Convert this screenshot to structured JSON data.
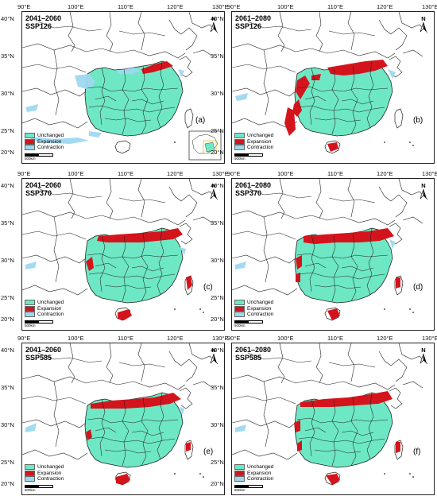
{
  "x_ticks": [
    "90°E",
    "100°E",
    "110°E",
    "120°E",
    "130°E"
  ],
  "y_ticks": [
    "40°N",
    "35°N",
    "30°N",
    "25°N",
    "20°N"
  ],
  "north_label": "N",
  "scale_label": "500km",
  "colors": {
    "unchanged": "#6ee8c4",
    "expansion": "#d4141c",
    "contraction": "#9ed8f0",
    "border": "#222222",
    "land": "#ffffff"
  },
  "panels": [
    {
      "title_line1": "2041–2060",
      "title_line2": "SSP126",
      "letter": "(a)",
      "legend": [
        "Unchanged",
        "Expansion",
        "Contraction"
      ],
      "has_inset": true
    },
    {
      "title_line1": "2061–2080",
      "title_line2": "SSP126",
      "letter": "(b)",
      "legend": [
        "Unchanged",
        "Expansion",
        "Contraction"
      ],
      "has_inset": false
    },
    {
      "title_line1": "2041–2060",
      "title_line2": "SSP370",
      "letter": "(c)",
      "legend": [
        "Unchanged",
        "Expansion",
        "Contraction"
      ],
      "has_inset": false
    },
    {
      "title_line1": "2061–2080",
      "title_line2": "SSP370",
      "letter": "(d)",
      "legend": [
        "Unchanged",
        "Expansion",
        "Contraction"
      ],
      "has_inset": false
    },
    {
      "title_line1": "2041–2060",
      "title_line2": "SSP585",
      "letter": "(e)",
      "legend": [
        "Unchanged",
        "Expansion",
        "Contraction"
      ],
      "has_inset": false
    },
    {
      "title_line1": "2061–2080",
      "title_line2": "SSP585",
      "letter": "(f)",
      "legend": [
        "Unchanged",
        "Expansion",
        "Contraction"
      ],
      "has_inset": false
    }
  ]
}
